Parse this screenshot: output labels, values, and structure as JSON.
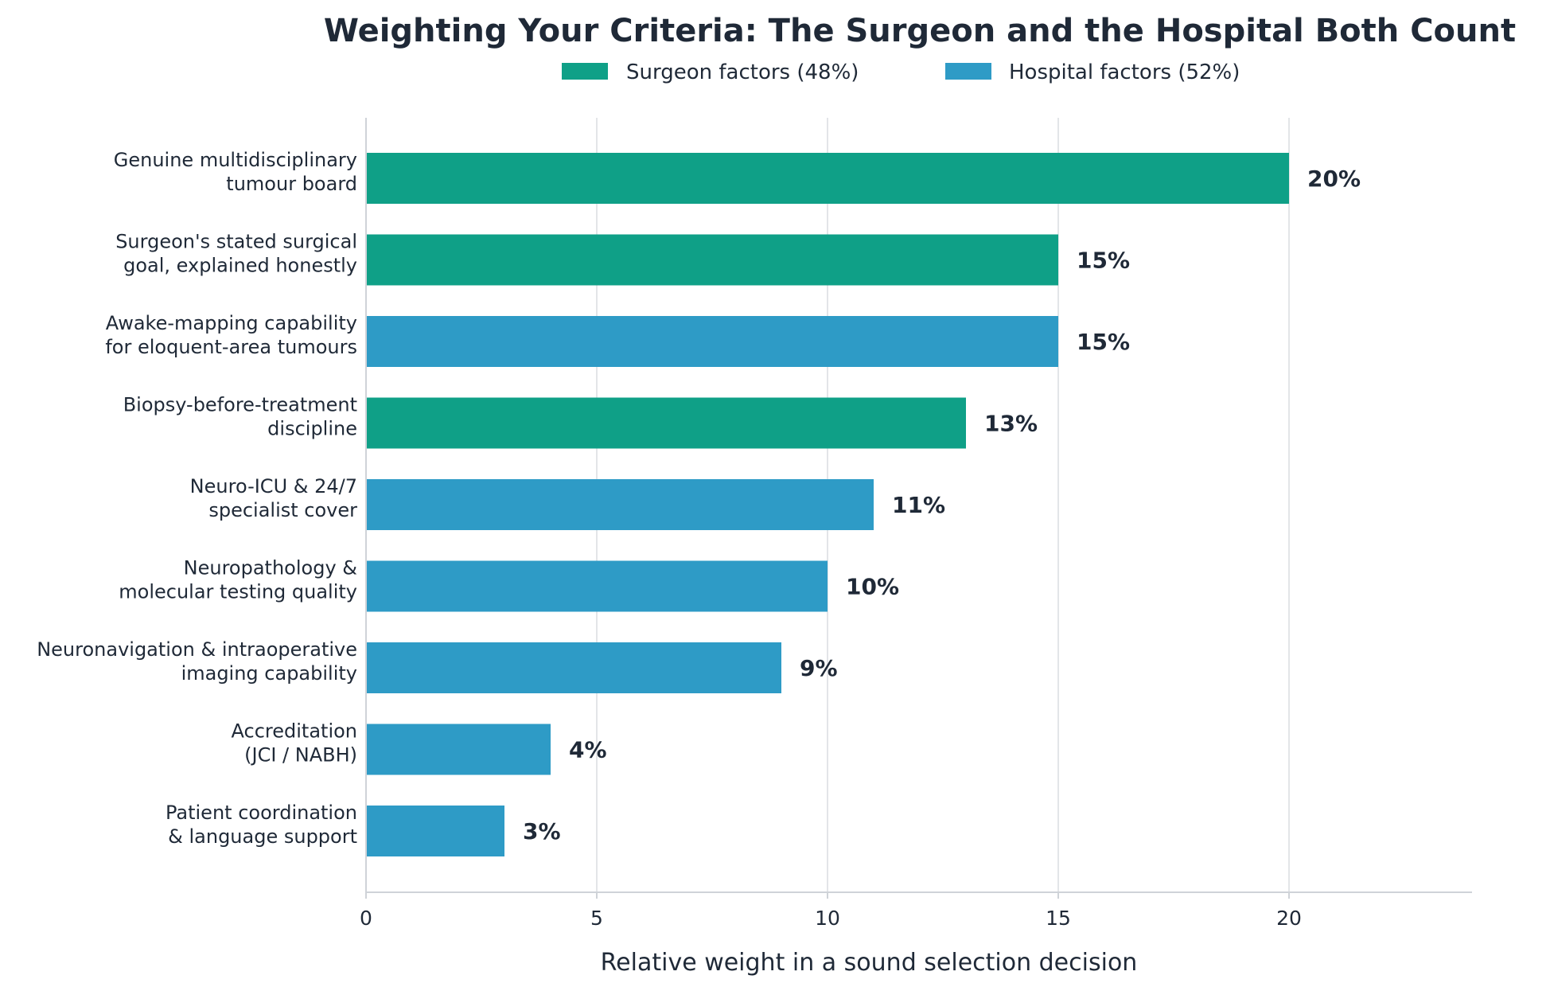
{
  "chart_data": {
    "type": "bar",
    "orientation": "horizontal",
    "title": "Weighting Your Criteria: The Surgeon and the Hospital Both Count",
    "xlabel": "Relative weight in a sound selection decision",
    "ylabel": "",
    "xlim": [
      0,
      24
    ],
    "xticks": [
      0,
      5,
      10,
      15,
      20
    ],
    "grid": "vertical",
    "legend_placement": "top-center",
    "legend": [
      {
        "name": "Surgeon factors  (48%)",
        "group": "surgeon"
      },
      {
        "name": "Hospital factors  (52%)",
        "group": "hospital"
      }
    ],
    "colors": {
      "surgeon": "#0fa087",
      "hospital": "#2e9bc6"
    },
    "categories": [
      [
        "Genuine multidisciplinary",
        "tumour board"
      ],
      [
        "Surgeon's stated surgical",
        "goal, explained honestly"
      ],
      [
        "Awake-mapping capability",
        "for eloquent-area tumours"
      ],
      [
        "Biopsy-before-treatment",
        "discipline"
      ],
      [
        "Neuro-ICU & 24/7",
        "specialist cover"
      ],
      [
        "Neuropathology &",
        "molecular testing quality"
      ],
      [
        "Neuronavigation & intraoperative",
        "imaging capability"
      ],
      [
        "Accreditation",
        "(JCI / NABH)"
      ],
      [
        "Patient coordination",
        "& language support"
      ]
    ],
    "values": [
      20,
      15,
      15,
      13,
      11,
      10,
      9,
      4,
      3
    ],
    "groups": [
      "surgeon",
      "surgeon",
      "hospital",
      "surgeon",
      "hospital",
      "hospital",
      "hospital",
      "hospital",
      "hospital"
    ],
    "value_labels": [
      "20%",
      "15%",
      "15%",
      "13%",
      "11%",
      "10%",
      "9%",
      "4%",
      "3%"
    ]
  }
}
